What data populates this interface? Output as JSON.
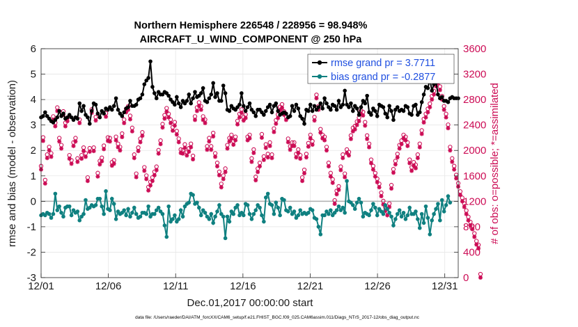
{
  "chart_data": {
    "type": "line",
    "title": "Northern Hemisphere 226548 / 228956 = 98.948%",
    "subtitle": "AIRCRAFT_U_WIND_COMPONENT @ 250 hPa",
    "xlabel": "Dec.01,2017 00:00:00 start",
    "ylabel_left": "rmse and bias (model - observation)",
    "ylabel_right": "# of obs: o=possible; *=assimilated",
    "footnote": "data file: /Users/raeder/DAI/ATM_forcXX/CAM6_setup/f.e21.FHIST_BGC.f09_025.CAM6assim.011/Diags_NTrS_2017-12/obs_diag_output.nc",
    "ylim_left": [
      -3,
      6
    ],
    "ylim_right": [
      0,
      3600
    ],
    "xlim_days": [
      0,
      31
    ],
    "grid": true,
    "legend_position": "top-right",
    "yticks_left": [
      "-3",
      "-2",
      "-1",
      "0",
      "1",
      "2",
      "3",
      "4",
      "5",
      "6"
    ],
    "yticks_right": [
      "0",
      "400",
      "800",
      "1200",
      "1600",
      "2000",
      "2400",
      "2800",
      "3200",
      "3600"
    ],
    "xticks": [
      {
        "label": "12/01",
        "day": 0
      },
      {
        "label": "12/06",
        "day": 5
      },
      {
        "label": "12/11",
        "day": 10
      },
      {
        "label": "12/16",
        "day": 15
      },
      {
        "label": "12/21",
        "day": 20
      },
      {
        "label": "12/26",
        "day": 25
      },
      {
        "label": "12/31",
        "day": 30
      }
    ],
    "colors": {
      "rmse": "#000000",
      "bias": "#0f8080",
      "obs": "#cc0c55",
      "zero_line": "#b3b3b3",
      "legend_text": "#1f4fe0"
    },
    "series": [
      {
        "name": "rmse grand pr = 3.7711",
        "values": [
          3.3,
          3.35,
          3.5,
          3.35,
          3.25,
          3.15,
          3.1,
          3.2,
          3.3,
          3.55,
          3.35,
          3.45,
          3.25,
          3.3,
          3.4,
          3.3,
          3.2,
          3.3,
          3.25,
          3.85,
          3.55,
          3.75,
          3.4,
          3.3,
          3.05,
          3.55,
          3.85,
          3.8,
          3.45,
          3.3,
          3.55,
          3.45,
          3.65,
          3.6,
          3.7,
          3.6,
          3.75,
          4.05,
          3.6,
          3.45,
          3.35,
          3.5,
          3.65,
          3.7,
          3.95,
          3.75,
          3.75,
          3.8,
          4,
          4.05,
          4.2,
          4.6,
          4.75,
          4.85,
          5.5,
          4.5,
          4.25,
          4.05,
          4.3,
          4.2,
          4.2,
          4.3,
          4.25,
          4.15,
          4,
          3.9,
          3.8,
          4.1,
          3.85,
          3.7,
          3.95,
          3.85,
          3.95,
          4.2,
          3.85,
          4.05,
          4.3,
          4.1,
          4.15,
          4.25,
          4.45,
          3.95,
          3.9,
          4.05,
          4.2,
          4.65,
          4.1,
          4.25,
          3.95,
          3.95,
          4.55,
          4.25,
          3.6,
          3.55,
          3.75,
          3.65,
          3.6,
          3.7,
          3.8,
          4.25,
          3.75,
          3.55,
          3.7,
          3.85,
          3.6,
          3.5,
          3.35,
          3.6,
          3.6,
          3.5,
          3.4,
          3.55,
          3.7,
          3.8,
          3.5,
          3.75,
          3.85,
          3.55,
          3.4,
          3.45,
          3.5,
          3.45,
          3.3,
          3.35,
          3.75,
          3.55,
          3.8,
          3.65,
          3.35,
          3.25,
          3.05,
          3.6,
          3.55,
          3.8,
          3.55,
          3.75,
          3.6,
          3.7,
          3.85,
          3.65,
          4.05,
          3.85,
          3.7,
          3.6,
          3.8,
          3.75,
          3.6,
          3.95,
          3.7,
          3.8,
          4.35,
          3.8,
          3.7,
          3.85,
          3.55,
          3.75,
          3.65,
          3.4,
          3.7,
          3.95,
          3.85,
          4.15,
          3.5,
          3.4,
          3.65,
          3.55,
          3.35,
          3.8,
          3.75,
          3.7,
          3.45,
          3.3,
          3.75,
          3.55,
          3.2,
          3.6,
          3.7,
          3.55,
          3.6,
          3.55,
          3.75,
          3.7,
          3.45,
          3.4,
          3.75,
          3.8,
          3.4,
          3.5,
          3.9,
          4.2,
          4.5,
          4.45,
          4.8,
          4.35,
          4.6,
          4.75,
          4.2,
          4.05,
          4.1,
          3.95,
          3.95,
          3.9,
          4.05,
          4.1,
          4.05,
          4.05,
          4.05
        ]
      },
      {
        "name": "bias grand pr = -0.2877",
        "values": [
          -0.55,
          -0.5,
          -0.55,
          -0.45,
          -0.5,
          -0.65,
          -0.5,
          0.3,
          -0.35,
          -0.2,
          -0.45,
          -0.6,
          -0.25,
          -0.2,
          -0.2,
          -0.55,
          -0.35,
          -0.45,
          -0.4,
          -0.75,
          -0.6,
          -0.5,
          0.05,
          -0.3,
          -0.25,
          -0.15,
          -0.2,
          -0.15,
          0.1,
          0.1,
          -0.2,
          -0.5,
          0.4,
          -0.3,
          -0.35,
          0.1,
          -0.1,
          -0.7,
          -0.4,
          -0.5,
          -0.45,
          -0.35,
          -0.55,
          -0.3,
          -0.6,
          -0.45,
          -0.25,
          -0.5,
          -0.65,
          -0.6,
          -0.45,
          -0.45,
          -0.5,
          -0.2,
          -0.6,
          -0.5,
          -0.5,
          -0.35,
          -0.25,
          -0.4,
          -0.5,
          -0.95,
          -1.4,
          -0.2,
          -0.8,
          -0.7,
          -0.55,
          -0.8,
          -0.7,
          -0.35,
          -0.6,
          -0.2,
          -0.1,
          -0.05,
          0.3,
          0.25,
          -0.1,
          -0.05,
          -0.25,
          -0.55,
          -0.35,
          -0.45,
          -0.6,
          -0.7,
          -0.5,
          -0.85,
          -0.6,
          -0.4,
          -0.15,
          -0.5,
          -0.6,
          -1.45,
          -0.6,
          -0.8,
          -0.4,
          -0.5,
          -0.25,
          -0.15,
          -0.55,
          -0.45,
          -0.55,
          -0.1,
          -0.15,
          -0.5,
          -0.7,
          -0.5,
          -0.35,
          -0.15,
          -0.25,
          -0.55,
          -0.8,
          0.15,
          0.3,
          -0.1,
          -0.15,
          -0.5,
          -0.05,
          -0.25,
          -0.55,
          0.1,
          0.05,
          -0.35,
          -0.4,
          -0.25,
          -0.5,
          -0.4,
          -0.65,
          -0.55,
          -0.35,
          -0.5,
          -0.45,
          -0.5,
          -0.45,
          -0.3,
          -0.35,
          -0.65,
          -0.7,
          -1.0,
          -1.3,
          -0.55,
          -0.55,
          -0.4,
          -0.5,
          -0.35,
          -0.55,
          -0.45,
          -0.35,
          -0.2,
          -0.35,
          -0.25,
          -0.45,
          0.8,
          0,
          -0.05,
          -0.15,
          -0.3,
          -0.05,
          0.1,
          -0.05,
          -0.6,
          -0.45,
          -0.5,
          -0.55,
          -0.35,
          -0.1,
          -0.25,
          -0.55,
          -0.3,
          -0.4,
          -0.5,
          -0.15,
          -0.3,
          -0.45,
          -0.6,
          -0.95,
          -0.7,
          -0.5,
          -0.35,
          -0.6,
          -0.45,
          -0.7,
          -0.55,
          -0.25,
          -0.5,
          -0.5,
          -0.4,
          -0.7,
          -1.05,
          -0.5,
          -0.85,
          -0.2,
          -0.65,
          -1.3,
          -0.75,
          -0.5,
          -0.3,
          -0.1,
          -0.75,
          0.05,
          -0.4,
          -0.15,
          0.2,
          -0.05
        ]
      },
      {
        "name": "obs count (assimilated / possible)",
        "values": [
          1700,
          2150,
          1480,
          1880,
          2000,
          1900,
          2480,
          2380,
          2620,
          2140,
          2030,
          2560,
          2380,
          2460,
          1870,
          1790,
          2070,
          2140,
          1820,
          2430,
          1870,
          1990,
          1900,
          1520,
          1980,
          2590,
          1990,
          2470,
          1590,
          1780,
          1830,
          2020,
          2530,
          2150,
          2140,
          1760,
          1790,
          2160,
          2050,
          2000,
          2210,
          2430,
          2600,
          2640,
          2490,
          2300,
          1880,
          1580,
          1990,
          2130,
          2230,
          1680,
          1550,
          1370,
          1450,
          1520,
          1610,
          1690,
          1950,
          2100,
          2360,
          2500,
          2610,
          2520,
          2430,
          2310,
          2390,
          2250,
          2130,
          1960,
          1950,
          2040,
          1920,
          1980,
          2050,
          1860,
          2480,
          2620,
          2700,
          2640,
          2480,
          2430,
          2010,
          2140,
          2010,
          2220,
          1900,
          1750,
          1610,
          1420,
          1550,
          1660,
          2030,
          2140,
          2190,
          2090,
          2160,
          2410,
          2520,
          2590,
          2470,
          2510,
          2160,
          2190,
          1820,
          1960,
          1530,
          1660,
          1750,
          2200,
          1850,
          2040,
          1890,
          2070,
          1880,
          2290,
          2420,
          2510,
          2630,
          2670,
          2560,
          2480,
          2130,
          2010,
          2070,
          2070,
          1890,
          1960,
          1870,
          1520,
          1640,
          1890,
          2060,
          2190,
          2090,
          2470,
          2820,
          2640,
          2280,
          2190,
          2160,
          2000,
          1750,
          1590,
          1490,
          1160,
          1310,
          1380,
          1690,
          1880,
          1580,
          1960,
          1920,
          2180,
          2300,
          2330,
          2400,
          2460,
          2570,
          2550,
          2390,
          2180,
          2050,
          1800,
          1700,
          1590,
          1500,
          1420,
          1280,
          1150,
          1050,
          980,
          1110,
          1400,
          1650,
          1780,
          1890,
          2030,
          2100,
          2190,
          2160,
          2070,
          1800,
          1680,
          1760,
          1720,
          1880,
          2050,
          2260,
          2440,
          2520,
          2600,
          2680,
          2800,
          2880,
          3010,
          3060,
          2950,
          2800,
          2640,
          2520,
          2350,
          2000,
          1820,
          1700,
          1560,
          1430,
          1300,
          1200,
          1110,
          1000,
          900,
          820,
          760,
          640,
          520,
          460,
          0
        ]
      }
    ]
  }
}
